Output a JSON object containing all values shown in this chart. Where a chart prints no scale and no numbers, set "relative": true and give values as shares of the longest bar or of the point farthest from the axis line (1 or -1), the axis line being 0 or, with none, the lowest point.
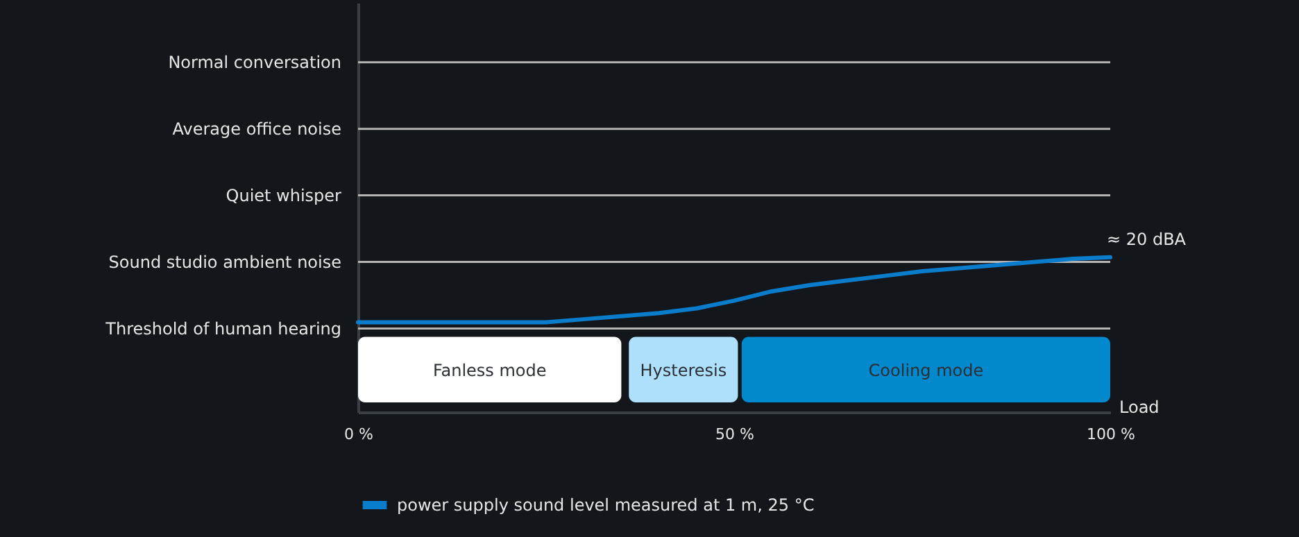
{
  "chart_data": {
    "type": "line",
    "xlabel": "Load",
    "x": [
      0,
      10,
      20,
      25,
      30,
      35,
      40,
      45,
      50,
      55,
      60,
      65,
      70,
      75,
      80,
      85,
      90,
      95,
      100
    ],
    "series": [
      {
        "name": "power supply sound level measured at 1 m, 25 °C",
        "color": "#0a7ccc",
        "values": [
          0.58,
          0.58,
          0.58,
          0.58,
          0.6,
          0.62,
          0.64,
          0.67,
          0.72,
          0.78,
          0.82,
          0.85,
          0.88,
          0.91,
          0.93,
          0.95,
          0.97,
          0.99,
          1.0
        ]
      }
    ],
    "relative": true,
    "xlim": [
      0,
      100
    ],
    "xticks": [
      {
        "value": 0,
        "label": "0 %"
      },
      {
        "value": 50,
        "label": "50 %"
      },
      {
        "value": 100,
        "label": "100 %"
      }
    ],
    "ref_lines": [
      {
        "axis": "y",
        "value": 0.54,
        "label": "Threshold of human hearing",
        "color": "#b5b5b5"
      },
      {
        "axis": "y",
        "value": 0.97,
        "label": "Sound studio ambient noise",
        "color": "#b5b5b5"
      },
      {
        "axis": "y",
        "value": 1.4,
        "label": "Quiet whisper",
        "color": "#b5b5b5"
      },
      {
        "axis": "y",
        "value": 1.83,
        "label": "Average office noise",
        "color": "#b5b5b5"
      },
      {
        "axis": "y",
        "value": 2.26,
        "label": "Normal conversation",
        "color": "#b5b5b5"
      }
    ],
    "bands": [
      {
        "axis": "x",
        "from": 0,
        "to": 35,
        "label": "Fanless mode",
        "color": "#ffffff"
      },
      {
        "axis": "x",
        "from": 36,
        "to": 50.5,
        "label": "Hysteresis",
        "color": "#aee0fb"
      },
      {
        "axis": "x",
        "from": 51,
        "to": 100,
        "label": "Cooling mode",
        "color": "#0288cc"
      }
    ],
    "annotations": [
      {
        "text": "≈ 20 dBA",
        "x": 100,
        "y": 1.0
      }
    ],
    "legend": "bottom",
    "line_style": "solid"
  }
}
